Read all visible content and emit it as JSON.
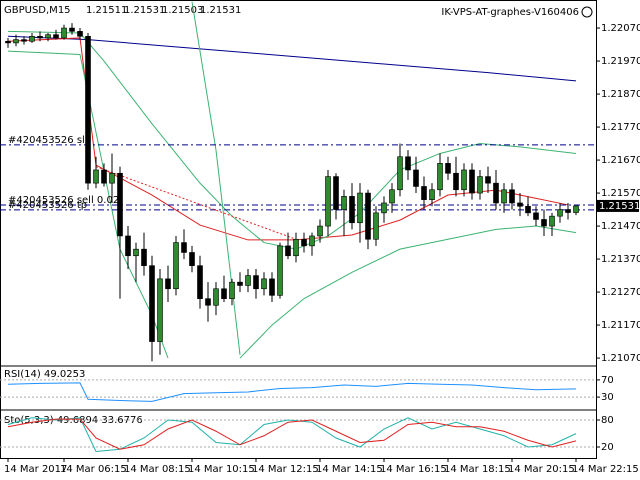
{
  "chart_data": [
    {
      "type": "candlestick",
      "title": "GBPUSD,M15",
      "watermark": "IK-VPS-AT-graphes-V160406",
      "up_color": "#2e8b2e",
      "down_color": "#000000",
      "categories": [
        "14 Mar 2017",
        null,
        null,
        null,
        null,
        null,
        null,
        "14 Mar 06:15",
        null,
        null,
        null,
        null,
        null,
        null,
        null,
        "14 Mar 08:15",
        null,
        null,
        null,
        null,
        null,
        null,
        null,
        "14 Mar 10:15",
        null,
        null,
        null,
        null,
        null,
        null,
        null,
        "14 Mar 12:15",
        null,
        null,
        null,
        null,
        null,
        null,
        null,
        "14 Mar 14:15",
        null,
        null,
        null,
        null,
        null,
        null,
        null,
        "14 Mar 16:15",
        null,
        null,
        null,
        null,
        null,
        null,
        null,
        "14 Mar 18:15",
        null,
        null,
        null,
        null,
        null,
        null,
        null,
        "14 Mar 20:15",
        null,
        null,
        null,
        null,
        null,
        null,
        null,
        "14 Mar 22:15"
      ],
      "open": [
        1.2203,
        1.22025,
        1.22035,
        1.2203,
        1.22045,
        1.2204,
        1.2205,
        1.2204,
        1.2207,
        1.2206,
        1.22045,
        1.216,
        1.2164,
        1.216,
        1.2163,
        1.2144,
        1.2138,
        1.214,
        1.2135,
        1.2112,
        1.2131,
        1.2128,
        1.2142,
        1.2139,
        1.2135,
        1.2125,
        1.2123,
        1.2128,
        1.2125,
        1.213,
        1.2129,
        1.2132,
        1.2128,
        1.2131,
        1.2126,
        1.2141,
        1.2138,
        1.2143,
        1.2141,
        1.2144,
        1.2147,
        1.2162,
        1.2152,
        1.2156,
        1.2148,
        1.2157,
        1.2143,
        1.2151,
        1.2154,
        1.2158,
        1.2168,
        1.2164,
        1.2159,
        1.2155,
        1.2158,
        1.2166,
        1.2163,
        1.2158,
        1.2164,
        1.2157,
        1.2162,
        1.216,
        1.2154,
        1.2158,
        1.2154,
        1.2153,
        1.2151,
        1.2149,
        1.2147,
        1.215,
        1.2152,
        1.21511
      ],
      "high": [
        1.2204,
        1.2205,
        1.22045,
        1.22055,
        1.2206,
        1.22055,
        1.22065,
        1.2208,
        1.22085,
        1.2207,
        1.22055,
        1.2168,
        1.2166,
        1.2169,
        1.2165,
        1.2147,
        1.2142,
        1.2145,
        1.2138,
        1.2134,
        1.2135,
        1.2144,
        1.2146,
        1.2141,
        1.2138,
        1.213,
        1.213,
        1.2132,
        1.2131,
        1.2133,
        1.2134,
        1.2134,
        1.2133,
        1.2133,
        1.2142,
        1.2145,
        1.2145,
        1.2145,
        1.2145,
        1.2149,
        1.2164,
        1.2163,
        1.2158,
        1.216,
        1.216,
        1.2158,
        1.2153,
        1.2156,
        1.216,
        1.2172,
        1.217,
        1.2168,
        1.2162,
        1.216,
        1.2169,
        1.2168,
        1.2168,
        1.2166,
        1.2166,
        1.2164,
        1.2165,
        1.2164,
        1.216,
        1.216,
        1.2157,
        1.2156,
        1.2153,
        1.2152,
        1.2151,
        1.2154,
        1.2154,
        1.21531
      ],
      "low": [
        1.2201,
        1.22015,
        1.2202,
        1.22025,
        1.2203,
        1.2203,
        1.22035,
        1.22035,
        1.2205,
        1.22035,
        1.2158,
        1.21585,
        1.2159,
        1.2154,
        1.2125,
        1.2134,
        1.213,
        1.2132,
        1.2106,
        1.2108,
        1.2124,
        1.2126,
        1.2137,
        1.2133,
        1.2122,
        1.2118,
        1.212,
        1.2124,
        1.2123,
        1.2127,
        1.2127,
        1.2125,
        1.2126,
        1.2124,
        1.2125,
        1.2137,
        1.2136,
        1.2139,
        1.2138,
        1.2142,
        1.2144,
        1.2149,
        1.2144,
        1.2146,
        1.2142,
        1.214,
        1.2141,
        1.2148,
        1.2151,
        1.2156,
        1.2161,
        1.2157,
        1.2152,
        1.2153,
        1.2156,
        1.2161,
        1.2156,
        1.2156,
        1.2155,
        1.2155,
        1.2157,
        1.2152,
        1.2151,
        1.2152,
        1.215,
        1.215,
        1.2147,
        1.2144,
        1.2144,
        1.2148,
        1.2149,
        1.21503
      ],
      "close": [
        1.22025,
        1.22035,
        1.2203,
        1.22045,
        1.2204,
        1.2205,
        1.2204,
        1.2207,
        1.2206,
        1.22045,
        1.216,
        1.2164,
        1.216,
        1.2163,
        1.2144,
        1.2138,
        1.214,
        1.2135,
        1.2112,
        1.2131,
        1.2128,
        1.2142,
        1.2139,
        1.2135,
        1.2125,
        1.2123,
        1.2128,
        1.2125,
        1.213,
        1.2129,
        1.2132,
        1.2128,
        1.2131,
        1.2126,
        1.2141,
        1.2138,
        1.2143,
        1.2141,
        1.2144,
        1.2147,
        1.2162,
        1.2152,
        1.2156,
        1.2148,
        1.2157,
        1.2143,
        1.2151,
        1.2154,
        1.2158,
        1.2168,
        1.2164,
        1.2159,
        1.2155,
        1.2158,
        1.2166,
        1.2163,
        1.2158,
        1.2164,
        1.2157,
        1.2162,
        1.216,
        1.2154,
        1.2158,
        1.2154,
        1.2153,
        1.2151,
        1.2149,
        1.2147,
        1.215,
        1.2152,
        1.21511,
        1.21531
      ],
      "lines": [
        {
          "color": "#00008b",
          "x": [
            0,
            10,
            20,
            30,
            40,
            50,
            60,
            71
          ],
          "values": [
            1.22045,
            1.22035,
            1.22015,
            1.21995,
            1.21975,
            1.21955,
            1.21935,
            1.2191
          ]
        },
        {
          "color": "#e02020",
          "x": [
            0,
            9,
            11,
            18,
            24,
            30,
            36,
            43,
            49,
            55,
            61,
            70
          ],
          "values": [
            1.2203,
            1.2204,
            1.21655,
            1.21564,
            1.21473,
            1.21428,
            1.21428,
            1.21443,
            1.21488,
            1.21564,
            1.21579,
            1.21534
          ]
        },
        {
          "color": "#3cb371",
          "x": [
            0,
            9,
            12,
            18,
            24,
            28,
            32,
            36,
            40,
            44,
            49,
            54,
            59,
            64,
            71
          ],
          "values": [
            1.2206,
            1.22055,
            1.2197,
            1.2178,
            1.216,
            1.215,
            1.2142,
            1.214,
            1.2144,
            1.2151,
            1.2164,
            1.2169,
            1.2172,
            1.2171,
            1.2169
          ]
        },
        {
          "color": "#3cb371",
          "x": [
            0,
            9,
            14,
            18,
            20,
            25,
            29,
            33,
            37,
            43,
            49,
            55,
            61,
            66,
            71
          ],
          "values": [
            1.22,
            1.2199,
            1.214,
            1.212,
            1.2107,
            null,
            1.2107,
            1.2117,
            1.2125,
            1.2133,
            1.214,
            1.2143,
            1.2146,
            1.2147,
            1.2145
          ]
        },
        {
          "color": "#3cb371",
          "x": [
            23,
            26,
            29
          ],
          "values": [
            1.2215,
            1.217,
            1.2108
          ]
        }
      ],
      "levels": [
        {
          "label": "#420453526 sl",
          "value": 1.21716,
          "color": "#00008b"
        },
        {
          "label": "#420453526 sell 0.02",
          "value": 1.21534,
          "color": "#00008b"
        },
        {
          "label": "#420453526 tp",
          "value": 1.21519,
          "color": "#00008b"
        }
      ],
      "trade": {
        "x": [
          11,
          36
        ],
        "values": [
          1.2165,
          1.2143
        ],
        "color": "#e02020"
      },
      "ylim": [
        1.21049,
        1.22155
      ],
      "yticks": [
        {
          "value": 1.2207,
          "label": "1.22070"
        },
        {
          "value": 1.2197,
          "label": "1.21970"
        },
        {
          "value": 1.2187,
          "label": "1.21870"
        },
        {
          "value": 1.2177,
          "label": "1.21770"
        },
        {
          "value": 1.2167,
          "label": "1.21670"
        },
        {
          "value": 1.2157,
          "label": "1.21570"
        },
        {
          "value": 1.2147,
          "label": "1.21470"
        },
        {
          "value": 1.2137,
          "label": "1.21370"
        },
        {
          "value": 1.2127,
          "label": "1.21270"
        },
        {
          "value": 1.2117,
          "label": "1.21170"
        },
        {
          "value": 1.2107,
          "label": "1.21070"
        }
      ]
    },
    {
      "type": "line",
      "title": "RSI(14) 49.0253",
      "ylim": [
        0,
        100
      ],
      "yticks": [
        70,
        30
      ],
      "lines": [
        {
          "color": "#1e90ff",
          "x": [
            0,
            4,
            9,
            10,
            14,
            18,
            22,
            26,
            30,
            34,
            38,
            42,
            46,
            50,
            54,
            58,
            62,
            66,
            71
          ],
          "values": [
            60,
            62,
            63,
            25,
            22,
            20,
            38,
            40,
            42,
            50,
            52,
            58,
            55,
            62,
            60,
            58,
            52,
            47,
            49.0253
          ]
        }
      ]
    },
    {
      "type": "line",
      "title": "Sto(5,3,3) 49.6894 33.6776",
      "ylim": [
        0,
        100
      ],
      "yticks": [
        80,
        20
      ],
      "lines": [
        {
          "color": "#20b2aa",
          "x": [
            0,
            3,
            6,
            9,
            11,
            14,
            17,
            20,
            23,
            26,
            29,
            32,
            35,
            38,
            41,
            44,
            47,
            50,
            53,
            56,
            59,
            62,
            65,
            68,
            71
          ],
          "values": [
            70,
            85,
            80,
            85,
            10,
            15,
            40,
            80,
            75,
            30,
            25,
            70,
            80,
            75,
            40,
            20,
            60,
            85,
            60,
            75,
            60,
            45,
            20,
            25,
            49.6894
          ]
        },
        {
          "color": "#e02020",
          "x": [
            0,
            3,
            6,
            9,
            11,
            14,
            17,
            20,
            23,
            26,
            29,
            32,
            35,
            38,
            41,
            44,
            47,
            50,
            53,
            56,
            59,
            62,
            65,
            68,
            71
          ],
          "values": [
            65,
            75,
            82,
            82,
            40,
            15,
            25,
            60,
            80,
            55,
            25,
            45,
            75,
            80,
            55,
            30,
            35,
            70,
            75,
            65,
            65,
            55,
            35,
            20,
            33.6776
          ]
        }
      ]
    }
  ]
}
